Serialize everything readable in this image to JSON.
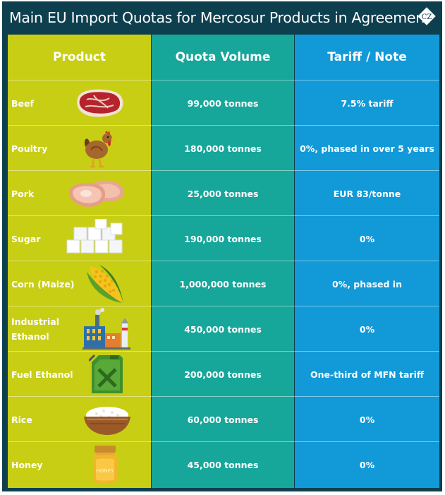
{
  "title": "Main EU Import Quotas for Mercosur Products in Agreement",
  "logo_text": "CZ",
  "headers": [
    "Product",
    "Quota Volume",
    "Tariff / Note"
  ],
  "rows": [
    {
      "product": "Beef",
      "quota": "99,000 tonnes",
      "note": "7.5% tariff",
      "icon": "beef-steak-icon"
    },
    {
      "product": "Poultry",
      "quota": "180,000 tonnes",
      "note": "0%, phased in over 5 years",
      "icon": "chicken-icon"
    },
    {
      "product": "Pork",
      "quota": "25,000 tonnes",
      "note": "EUR 83/tonne",
      "icon": "pork-chop-icon"
    },
    {
      "product": "Sugar",
      "quota": "190,000 tonnes",
      "note": "0%",
      "icon": "sugar-cubes-icon"
    },
    {
      "product": "Corn (Maize)",
      "quota": "1,000,000 tonnes",
      "note": "0%, phased in",
      "icon": "corn-icon"
    },
    {
      "product": "Industrial Ethanol",
      "quota": "450,000 tonnes",
      "note": "0%",
      "icon": "factory-icon"
    },
    {
      "product": "Fuel Ethanol",
      "quota": "200,000 tonnes",
      "note": "One-third of MFN tariff",
      "icon": "fuel-can-icon"
    },
    {
      "product": "Rice",
      "quota": "60,000 tonnes",
      "note": "0%",
      "icon": "rice-bowl-icon"
    },
    {
      "product": "Honey",
      "quota": "45,000 tonnes",
      "note": "0%",
      "icon": "honey-jar-icon"
    }
  ],
  "colors": {
    "background": "#0e3f4f",
    "product_col": "#c8ce14",
    "quota_col": "#17a69a",
    "tariff_col": "#1199d8"
  }
}
